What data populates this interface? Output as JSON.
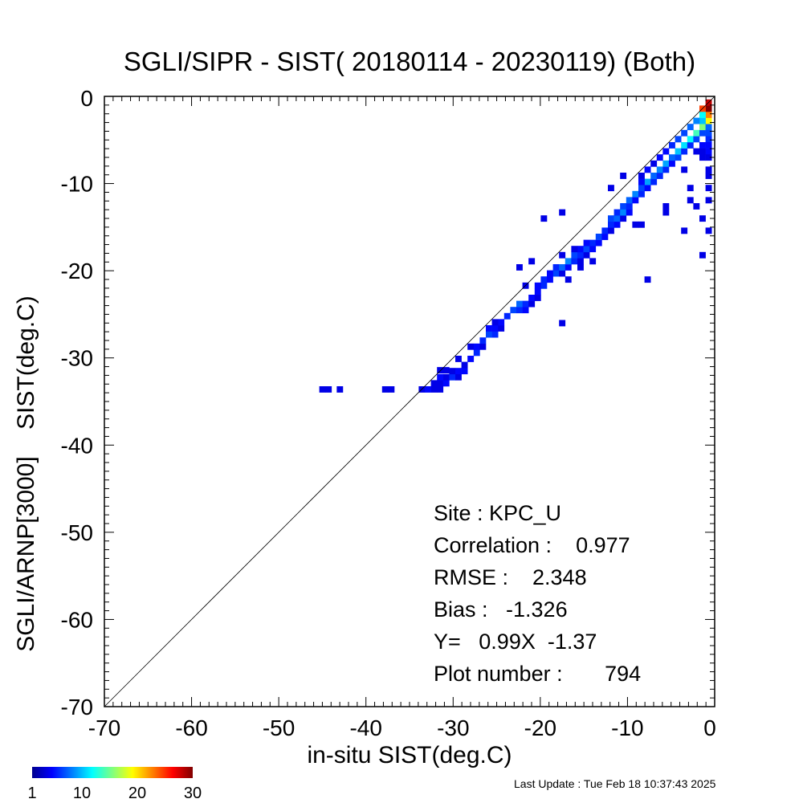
{
  "chart_data": {
    "type": "heatmap",
    "title": "SGLI/SIPR - SIST( 20180114 - 20230119) (Both)",
    "xlabel": "in-situ SIST(deg.C)",
    "ylabel": "SGLI/ARNP[3000]    SIST(deg.C)",
    "xlim": [
      -70,
      0
    ],
    "ylim": [
      -70,
      0
    ],
    "x_ticks": [
      "-70",
      "-60",
      "-50",
      "-40",
      "-30",
      "-20",
      "-10",
      "0"
    ],
    "y_ticks": [
      "-70",
      "-60",
      "-50",
      "-40",
      "-30",
      "-20",
      "-10",
      "0"
    ],
    "one_to_one_line": true,
    "bin_size": 0.7,
    "colorbar": {
      "min": 1,
      "max": 30,
      "ticks": [
        "1",
        "10",
        "20",
        "30"
      ]
    },
    "cells": [
      [
        -45.0,
        -33.6,
        1
      ],
      [
        -44.3,
        -33.6,
        1
      ],
      [
        -43.0,
        -33.6,
        1
      ],
      [
        -37.8,
        -33.6,
        1
      ],
      [
        -37.1,
        -33.6,
        1
      ],
      [
        -33.6,
        -33.6,
        1
      ],
      [
        -32.9,
        -33.6,
        2
      ],
      [
        -32.2,
        -33.6,
        1
      ],
      [
        -31.5,
        -33.6,
        1
      ],
      [
        -31.5,
        -32.9,
        1
      ],
      [
        -30.8,
        -32.9,
        2
      ],
      [
        -30.8,
        -32.2,
        1
      ],
      [
        -31.5,
        -31.4,
        1
      ],
      [
        -30.1,
        -32.2,
        3
      ],
      [
        -30.1,
        -31.5,
        1
      ],
      [
        -29.4,
        -32.2,
        1
      ],
      [
        -29.4,
        -31.5,
        2
      ],
      [
        -28.7,
        -31.5,
        2
      ],
      [
        -28.7,
        -30.8,
        1
      ],
      [
        -29.4,
        -30.1,
        1
      ],
      [
        -28.0,
        -30.1,
        2
      ],
      [
        -27.3,
        -29.4,
        3
      ],
      [
        -28.0,
        -28.7,
        1
      ],
      [
        -27.3,
        -28.7,
        2
      ],
      [
        -26.6,
        -28.7,
        1
      ],
      [
        -26.6,
        -28.0,
        3
      ],
      [
        -25.9,
        -27.3,
        4
      ],
      [
        -25.2,
        -27.3,
        3
      ],
      [
        -25.2,
        -26.6,
        2
      ],
      [
        -25.9,
        -26.6,
        2
      ],
      [
        -24.5,
        -26.6,
        1
      ],
      [
        -24.5,
        -25.9,
        2
      ],
      [
        -23.8,
        -25.2,
        3
      ],
      [
        -23.1,
        -24.5,
        4
      ],
      [
        -22.4,
        -24.5,
        3
      ],
      [
        -21.7,
        -24.5,
        2
      ],
      [
        -22.4,
        -23.8,
        5
      ],
      [
        -21.7,
        -23.8,
        3
      ],
      [
        -21.0,
        -23.8,
        1
      ],
      [
        -21.0,
        -23.1,
        2
      ],
      [
        -20.3,
        -23.1,
        1
      ],
      [
        -20.3,
        -22.4,
        2
      ],
      [
        -21.7,
        -21.7,
        1
      ],
      [
        -20.3,
        -21.7,
        2
      ],
      [
        -19.6,
        -21.7,
        3
      ],
      [
        -19.6,
        -21.0,
        3
      ],
      [
        -18.9,
        -21.0,
        2
      ],
      [
        -18.2,
        -20.3,
        4
      ],
      [
        -18.9,
        -20.3,
        2
      ],
      [
        -17.5,
        -20.3,
        1
      ],
      [
        -18.2,
        -19.6,
        3
      ],
      [
        -17.5,
        -19.6,
        5
      ],
      [
        -16.8,
        -19.6,
        2
      ],
      [
        -16.8,
        -18.9,
        6
      ],
      [
        -16.1,
        -18.9,
        3
      ],
      [
        -15.4,
        -18.9,
        1
      ],
      [
        -17.5,
        -18.2,
        1
      ],
      [
        -16.1,
        -18.2,
        4
      ],
      [
        -15.4,
        -18.2,
        3
      ],
      [
        -14.7,
        -18.2,
        1
      ],
      [
        -15.4,
        -17.5,
        2
      ],
      [
        -14.7,
        -17.5,
        4
      ],
      [
        -14.0,
        -17.5,
        2
      ],
      [
        -14.0,
        -16.8,
        3
      ],
      [
        -13.3,
        -16.8,
        2
      ],
      [
        -16.1,
        -17.5,
        1
      ],
      [
        -14.7,
        -16.8,
        2
      ],
      [
        -13.3,
        -16.1,
        4
      ],
      [
        -12.6,
        -16.1,
        2
      ],
      [
        -12.6,
        -15.4,
        3
      ],
      [
        -11.9,
        -15.4,
        1
      ],
      [
        -11.9,
        -14.7,
        3
      ],
      [
        -11.2,
        -14.7,
        2
      ],
      [
        -11.9,
        -14.0,
        4
      ],
      [
        -11.2,
        -14.0,
        5
      ],
      [
        -10.5,
        -14.0,
        1
      ],
      [
        -11.2,
        -13.3,
        3
      ],
      [
        -10.5,
        -13.3,
        6
      ],
      [
        -9.8,
        -13.3,
        2
      ],
      [
        -10.5,
        -12.6,
        4
      ],
      [
        -9.8,
        -12.6,
        3
      ],
      [
        -9.8,
        -11.9,
        5
      ],
      [
        -9.1,
        -11.9,
        2
      ],
      [
        -9.1,
        -11.2,
        6
      ],
      [
        -8.4,
        -11.2,
        3
      ],
      [
        -8.4,
        -10.5,
        4
      ],
      [
        -7.7,
        -10.5,
        2
      ],
      [
        -7.7,
        -9.8,
        7
      ],
      [
        -7.0,
        -9.8,
        3
      ],
      [
        -8.4,
        -9.8,
        2
      ],
      [
        -7.0,
        -9.1,
        5
      ],
      [
        -6.3,
        -9.1,
        3
      ],
      [
        -6.3,
        -8.4,
        6
      ],
      [
        -5.6,
        -8.4,
        3
      ],
      [
        -5.6,
        -7.7,
        7
      ],
      [
        -4.9,
        -7.7,
        2
      ],
      [
        -4.9,
        -7.0,
        5
      ],
      [
        -4.2,
        -7.0,
        4
      ],
      [
        -4.2,
        -6.3,
        8
      ],
      [
        -3.5,
        -6.3,
        3
      ],
      [
        -3.5,
        -5.6,
        9
      ],
      [
        -2.8,
        -5.6,
        3
      ],
      [
        -2.8,
        -4.9,
        10
      ],
      [
        -2.1,
        -4.9,
        4
      ],
      [
        -2.1,
        -4.2,
        12
      ],
      [
        -1.4,
        -4.2,
        4
      ],
      [
        -1.4,
        -3.5,
        14
      ],
      [
        -0.7,
        -3.5,
        5
      ],
      [
        -0.7,
        -2.8,
        18
      ],
      [
        -1.4,
        -2.8,
        8
      ],
      [
        -0.7,
        -2.1,
        22
      ],
      [
        -1.4,
        -2.1,
        10
      ],
      [
        -0.7,
        -1.4,
        30
      ],
      [
        -1.4,
        -1.4,
        24
      ],
      [
        -0.7,
        -0.7,
        28
      ],
      [
        -2.1,
        -2.8,
        6
      ],
      [
        -2.8,
        -3.5,
        5
      ],
      [
        -3.5,
        -4.2,
        4
      ],
      [
        -4.2,
        -4.9,
        4
      ],
      [
        -4.9,
        -5.6,
        3
      ],
      [
        -5.6,
        -6.3,
        2
      ],
      [
        -6.3,
        -7.0,
        2
      ],
      [
        -7.0,
        -7.7,
        1
      ],
      [
        -7.7,
        -8.4,
        2
      ],
      [
        -8.4,
        -9.1,
        1
      ],
      [
        -0.7,
        -4.9,
        3
      ],
      [
        -0.7,
        -5.6,
        2
      ],
      [
        -0.7,
        -6.3,
        2
      ],
      [
        -0.7,
        -7.0,
        1
      ],
      [
        -0.7,
        -4.2,
        4
      ],
      [
        -0.7,
        -8.4,
        1
      ],
      [
        -0.7,
        -9.1,
        1
      ],
      [
        -0.7,
        -10.5,
        1
      ],
      [
        -0.7,
        -11.9,
        1
      ],
      [
        -1.4,
        -5.6,
        2
      ],
      [
        -1.4,
        -6.3,
        1
      ],
      [
        -1.4,
        -7.0,
        1
      ],
      [
        -2.1,
        -6.3,
        1
      ],
      [
        -3.5,
        -8.4,
        1
      ],
      [
        -2.8,
        -10.5,
        1
      ],
      [
        -2.8,
        -11.9,
        1
      ],
      [
        -2.1,
        -12.6,
        1
      ],
      [
        -5.6,
        -12.6,
        1
      ],
      [
        -5.6,
        -13.3,
        1
      ],
      [
        -1.4,
        -14.0,
        1
      ],
      [
        -3.5,
        -15.4,
        1
      ],
      [
        -1.4,
        -18.2,
        1
      ],
      [
        -0.7,
        -15.4,
        1
      ],
      [
        -7.7,
        -21.0,
        1
      ],
      [
        -8.4,
        -14.7,
        1
      ],
      [
        -9.1,
        -14.7,
        1
      ],
      [
        -11.9,
        -10.5,
        1
      ],
      [
        -10.5,
        -9.1,
        1
      ],
      [
        -17.5,
        -26.0,
        1
      ],
      [
        -19.6,
        -14.0,
        1
      ],
      [
        -17.5,
        -13.3,
        1
      ],
      [
        -21.0,
        -18.9,
        1
      ],
      [
        -22.4,
        -19.6,
        1
      ],
      [
        -15.4,
        -19.6,
        1
      ],
      [
        -16.8,
        -21.0,
        1
      ],
      [
        -14.0,
        -18.9,
        1
      ],
      [
        -25.2,
        -25.9,
        1
      ],
      [
        -31.5,
        -32.2,
        2
      ],
      [
        -32.2,
        -32.9,
        1
      ],
      [
        -30.8,
        -31.4,
        1
      ]
    ]
  },
  "stats": {
    "site": "Site : KPC_U",
    "correlation": "Correlation :    0.977",
    "rmse": "RMSE :    2.348",
    "bias": "Bias :   -1.326",
    "regression": "Y=   0.99X  -1.37",
    "plot_number": "Plot number :       794"
  },
  "footer": {
    "last_update": "Last Update : Tue Feb 18 10:37:43 2025"
  }
}
